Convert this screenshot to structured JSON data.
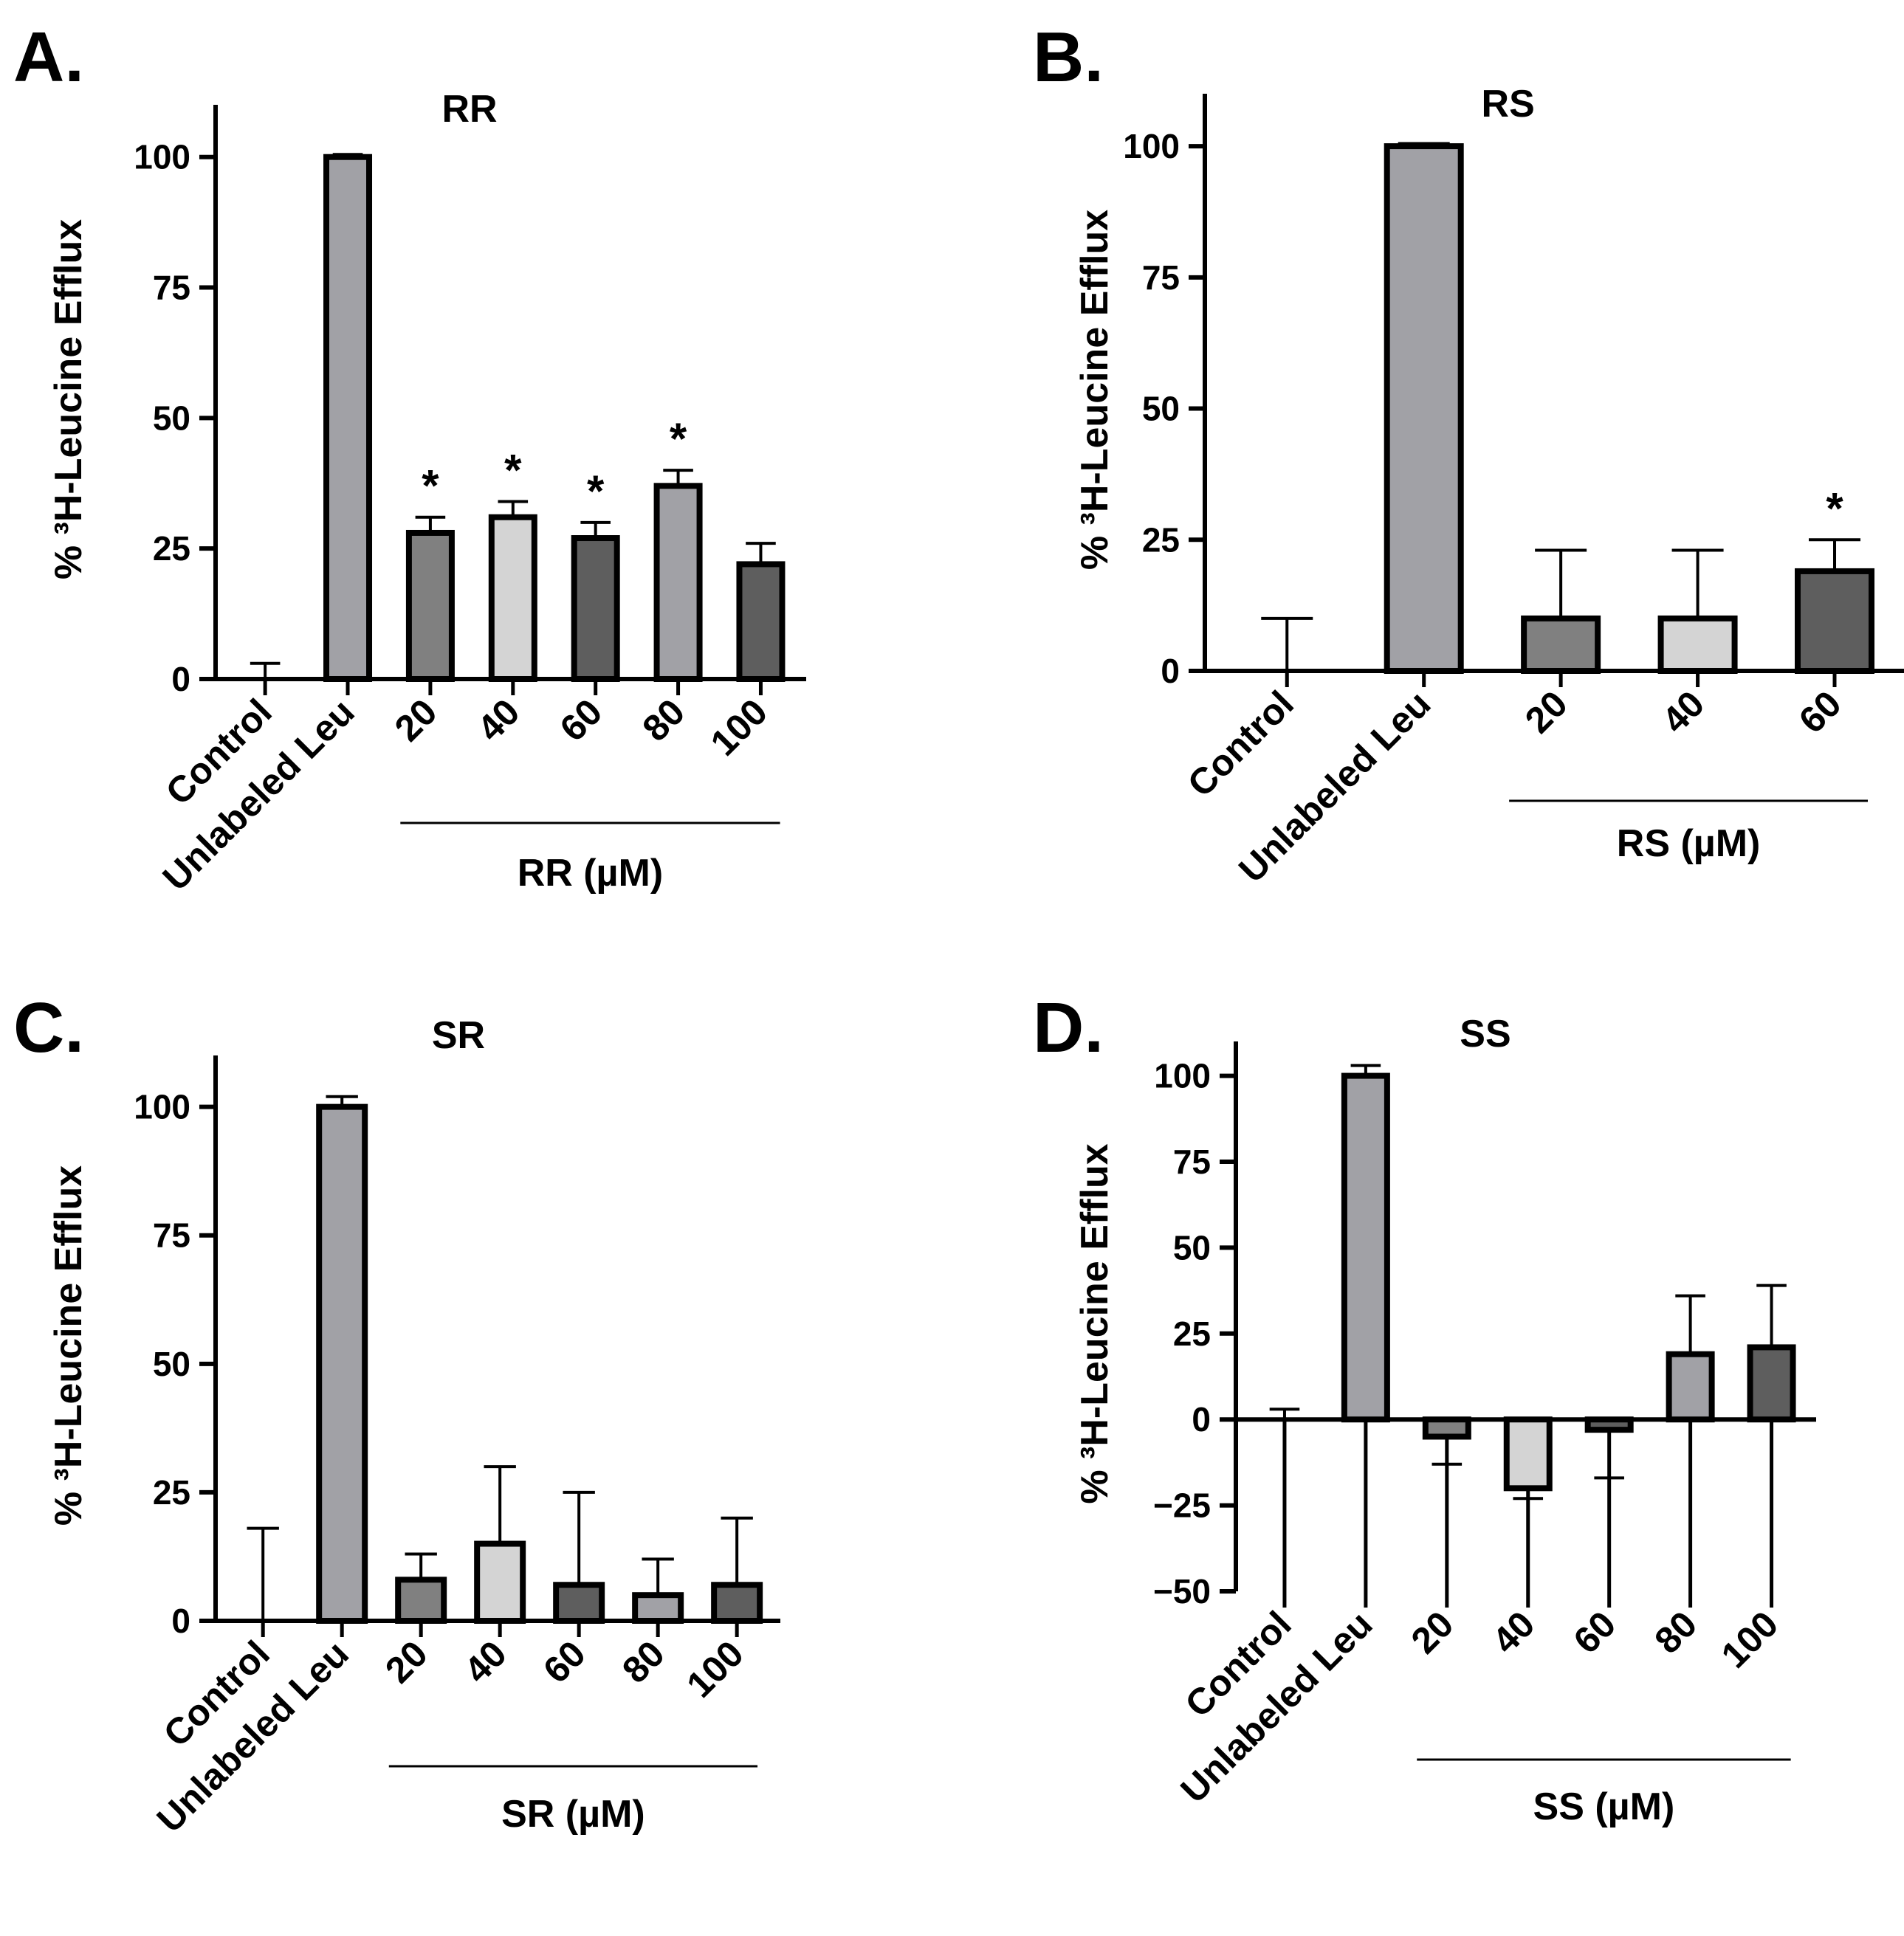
{
  "figure": {
    "panels": [
      {
        "letter": "A.",
        "y_axis_label": "% ³H-Leucine Efflux",
        "group_label": "RR (µM)"
      },
      {
        "letter": "B.",
        "y_axis_label": "% ³H-Leucine Efflux",
        "group_label": "RS (µM)"
      },
      {
        "letter": "C.",
        "y_axis_label": "% ³H-Leucine Efflux",
        "group_label": "SR (µM)"
      },
      {
        "letter": "D.",
        "y_axis_label": "% ³H-Leucine Efflux",
        "group_label": "SS (µM)"
      }
    ]
  },
  "chart_data": [
    {
      "type": "bar",
      "title": "RR",
      "ylabel": "% ³H-Leucine Efflux",
      "xlabel": "RR (µM)",
      "ylim": [
        0,
        110
      ],
      "yticks": [
        0,
        25,
        50,
        75,
        100
      ],
      "categories": [
        "Control",
        "Unlabeled Leu",
        "20",
        "40",
        "60",
        "80",
        "100"
      ],
      "values": [
        0,
        100,
        28,
        31,
        27,
        37,
        22
      ],
      "errors": [
        3,
        0.5,
        3,
        3,
        3,
        3,
        4
      ],
      "bar_colors": [
        "#000000",
        "#a1a1a6",
        "#808080",
        "#d4d4d4",
        "#5e5e5e",
        "#a1a1a6",
        "#5e5e5e"
      ],
      "significance": [
        "",
        "",
        "*",
        "*",
        "*",
        "*",
        ""
      ]
    },
    {
      "type": "bar",
      "title": "RS",
      "ylabel": "% ³H-Leucine Efflux",
      "xlabel": "RS (µM)",
      "ylim": [
        0,
        110
      ],
      "yticks": [
        0,
        25,
        50,
        75,
        100
      ],
      "categories": [
        "Control",
        "Unlabeled Leu",
        "20",
        "40",
        "60"
      ],
      "values": [
        0,
        100,
        10,
        10,
        19
      ],
      "errors": [
        10,
        0.5,
        13,
        13,
        6
      ],
      "bar_colors": [
        "#000000",
        "#a1a1a6",
        "#808080",
        "#d4d4d4",
        "#5e5e5e"
      ],
      "significance": [
        "",
        "",
        "",
        "",
        "*"
      ]
    },
    {
      "type": "bar",
      "title": "SR",
      "ylabel": "% ³H-Leucine Efflux",
      "xlabel": "SR (µM)",
      "ylim": [
        0,
        110
      ],
      "yticks": [
        0,
        25,
        50,
        75,
        100
      ],
      "categories": [
        "Control",
        "Unlabeled Leu",
        "20",
        "40",
        "60",
        "80",
        "100"
      ],
      "values": [
        0,
        100,
        8,
        15,
        7,
        5,
        7
      ],
      "errors": [
        18,
        2,
        5,
        15,
        18,
        7,
        13
      ],
      "bar_colors": [
        "#000000",
        "#a1a1a6",
        "#808080",
        "#d4d4d4",
        "#5e5e5e",
        "#a1a1a6",
        "#5e5e5e"
      ],
      "significance": [
        "",
        "",
        "",
        "",
        "",
        "",
        ""
      ]
    },
    {
      "type": "bar",
      "title": "SS",
      "ylabel": "% ³H-Leucine Efflux",
      "xlabel": "SS (µM)",
      "ylim": [
        -50,
        110
      ],
      "yticks": [
        -50,
        -25,
        0,
        25,
        50,
        75,
        100
      ],
      "categories": [
        "Control",
        "Unlabeled Leu",
        "20",
        "40",
        "60",
        "80",
        "100"
      ],
      "values": [
        0,
        100,
        -5,
        -20,
        -3,
        19,
        21
      ],
      "errors": [
        3,
        3,
        8,
        3,
        14,
        17,
        18
      ],
      "bar_colors": [
        "#000000",
        "#a1a1a6",
        "#808080",
        "#d4d4d4",
        "#5e5e5e",
        "#a1a1a6",
        "#5e5e5e"
      ],
      "significance": [
        "",
        "",
        "",
        "",
        "",
        "",
        ""
      ]
    }
  ]
}
